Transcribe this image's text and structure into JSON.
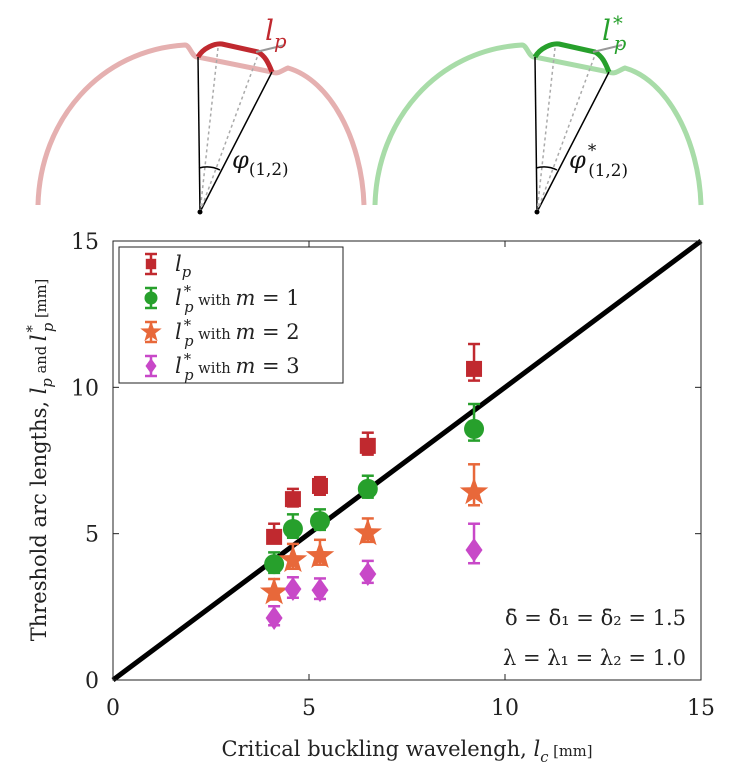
{
  "chart_data": {
    "type": "scatter",
    "xlabel": {
      "text": "Critical buckling wavelengh, ",
      "sym": "l",
      "sub": "c",
      "unit": " [mm]"
    },
    "ylabel": {
      "text": "Threshold arc lengths, ",
      "sym1": "l",
      "sub1": "p",
      "mid": " and ",
      "sym2": "l",
      "sub2": "p",
      "sup2": "*",
      "unit": " [mm]"
    },
    "xlim": [
      0,
      15
    ],
    "ylim": [
      0,
      15
    ],
    "xticks": [
      "0",
      "5",
      "10",
      "15"
    ],
    "yticks": [
      "0",
      "5",
      "10",
      "15"
    ],
    "grid": false,
    "legend_placement": "top-left",
    "reference_line": {
      "x": [
        0,
        15
      ],
      "y": [
        0,
        15
      ],
      "color": "#000000"
    },
    "x": [
      4.11,
      4.59,
      5.28,
      6.5,
      9.21
    ],
    "series": [
      {
        "name": {
          "sym": "l",
          "sub": "p",
          "sup": "",
          "text": ""
        },
        "marker": "square",
        "color": "#c0292f",
        "values": [
          4.89,
          6.18,
          6.63,
          8.0,
          10.63
        ],
        "err_low": [
          0.2,
          0.25,
          0.3,
          0.3,
          0.4
        ],
        "err_high": [
          0.45,
          0.35,
          0.3,
          0.45,
          0.85
        ]
      },
      {
        "name": {
          "sym": "l",
          "sub": "p",
          "sup": "*",
          "text": " with ",
          "var": "m",
          "eq": " = 1"
        },
        "marker": "circle",
        "color": "#27a02c",
        "values": [
          3.96,
          5.16,
          5.43,
          6.53,
          8.58
        ],
        "err_low": [
          0.3,
          0.3,
          0.3,
          0.3,
          0.4
        ],
        "err_high": [
          0.4,
          0.5,
          0.4,
          0.45,
          0.85
        ]
      },
      {
        "name": {
          "sym": "l",
          "sub": "p",
          "sup": "*",
          "text": " with ",
          "var": "m",
          "eq": " = 2"
        },
        "marker": "star",
        "color": "#e8683a",
        "values": [
          3.0,
          4.1,
          4.24,
          5.02,
          6.42
        ],
        "err_low": [
          0.25,
          0.3,
          0.3,
          0.3,
          0.45
        ],
        "err_high": [
          0.45,
          0.55,
          0.55,
          0.5,
          0.95
        ]
      },
      {
        "name": {
          "sym": "l",
          "sub": "p",
          "sup": "*",
          "text": " with ",
          "var": "m",
          "eq": " = 3"
        },
        "marker": "diamond",
        "color": "#c848c8",
        "values": [
          2.12,
          3.11,
          3.07,
          3.62,
          4.44
        ],
        "err_low": [
          0.25,
          0.3,
          0.3,
          0.3,
          0.45
        ],
        "err_high": [
          0.4,
          0.4,
          0.4,
          0.45,
          0.9
        ]
      }
    ],
    "annotations": [
      "δ̄ = δ̄₁ = δ̄₂ = 1.5",
      "λ = λ₁ = λ₂ = 1.0"
    ]
  },
  "illustrations": [
    {
      "label_sym": "l",
      "label_sub": "p",
      "label_sup": "",
      "angle_sym": "φ",
      "angle_sub": "(1,2)",
      "angle_sup": "",
      "color": "#c0292f",
      "faint": "#e5b0b0"
    },
    {
      "label_sym": "l",
      "label_sub": "p",
      "label_sup": "*",
      "angle_sym": "φ",
      "angle_sub": "(1,2)",
      "angle_sup": "*",
      "color": "#27a02c",
      "faint": "#a8dca8"
    }
  ]
}
